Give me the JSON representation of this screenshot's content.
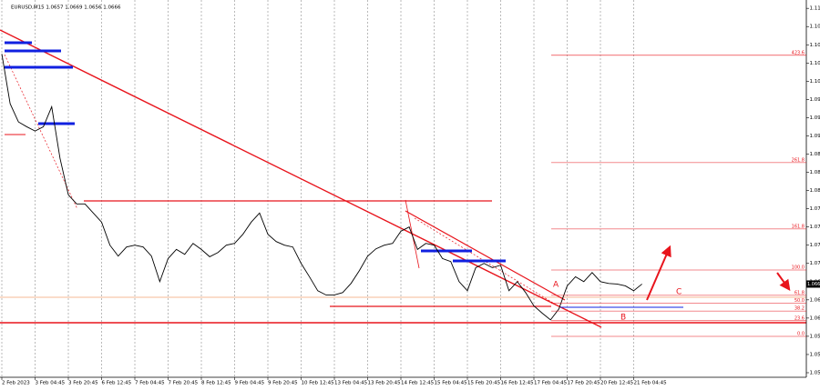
{
  "chart_data": {
    "type": "line",
    "title": "EURUSD,M15  1.0657 1.0669 1.0656 1.0666",
    "categories": [
      "2 Feb 2023",
      null,
      null,
      null,
      "3 Feb 04:45",
      null,
      null,
      null,
      "3 Feb 20:45",
      null,
      null,
      null,
      "6 Feb 12:45",
      null,
      null,
      null,
      "7 Feb 04:45",
      null,
      null,
      null,
      "7 Feb 20:45",
      null,
      null,
      null,
      "8 Feb 12:45",
      null,
      null,
      null,
      "9 Feb 04:45",
      null,
      null,
      null,
      "9 Feb 20:45",
      null,
      null,
      null,
      "10 Feb 12:45",
      null,
      null,
      null,
      "13 Feb 04:45",
      null,
      null,
      null,
      "13 Feb 20:45",
      null,
      null,
      null,
      "14 Feb 12:45",
      null,
      null,
      null,
      "15 Feb 04:45",
      null,
      null,
      null,
      "15 Feb 20:45",
      null,
      null,
      null,
      "16 Feb 12:45",
      null,
      null,
      null,
      "17 Feb 04:45",
      null,
      null,
      null,
      "17 Feb 20:45",
      null,
      null,
      null,
      "20 Feb 12:45",
      null,
      null,
      null,
      "21 Feb 04:45",
      null,
      null,
      null,
      null,
      null,
      null,
      null,
      null,
      null,
      null,
      null,
      null,
      null,
      null,
      null,
      null,
      null,
      null,
      null,
      null
    ],
    "series": [
      {
        "name": "EURUSD",
        "color": "#000000",
        "values": [
          1.1045,
          1.0963,
          1.0933,
          1.0925,
          1.0918,
          1.0925,
          1.0958,
          1.0873,
          1.0813,
          1.0798,
          1.0798,
          1.0783,
          1.0768,
          1.073,
          1.0712,
          1.0727,
          1.073,
          1.0727,
          1.0712,
          1.067,
          1.0708,
          1.0723,
          1.0715,
          1.0733,
          1.0723,
          1.0711,
          1.0718,
          1.073,
          1.0733,
          1.0748,
          1.0768,
          1.0783,
          1.0748,
          1.0736,
          1.073,
          1.0727,
          1.07,
          1.0678,
          1.0655,
          1.0648,
          1.0648,
          1.0652,
          1.0667,
          1.0688,
          1.0712,
          1.0724,
          1.073,
          1.0733,
          1.0753,
          1.076,
          1.0723,
          1.0733,
          1.073,
          1.0708,
          1.0703,
          1.067,
          1.0655,
          1.0693,
          1.07,
          1.0693,
          1.0697,
          1.0655,
          1.067,
          1.0652,
          1.063,
          1.0618,
          1.0607,
          1.0625,
          1.0663,
          1.0678,
          1.067,
          1.0685,
          1.067,
          1.0667,
          1.0666,
          1.0663,
          1.0655,
          1.0666,
          null,
          null,
          null,
          null,
          null,
          null,
          null,
          null,
          null,
          null,
          null,
          null,
          null,
          null,
          null,
          null,
          null,
          null,
          null
        ]
      }
    ],
    "ylim": [
      1.05125,
      1.113
    ],
    "yticks": [
      1.052,
      1.055,
      1.058,
      1.061,
      1.064,
      1.067,
      {
        "value": 1.07,
        "label": "1.070"
      },
      1.073,
      1.076,
      1.079,
      1.082,
      1.085,
      1.088,
      1.091,
      1.094,
      1.097,
      {
        "value": 1.1,
        "label": "1.100"
      },
      1.103,
      1.106,
      1.109,
      1.112
    ],
    "grid": true,
    "last_price": 1.0666,
    "fib_levels": [
      {
        "value": 423.6,
        "label": "423.6"
      },
      {
        "value": 261.8,
        "label": "261.8"
      },
      {
        "value": 161.8,
        "label": "161.8"
      },
      {
        "value": 100,
        "label": "100.0"
      },
      {
        "value": 61.8,
        "label": "61.8"
      },
      {
        "value": 50,
        "label": "50.0"
      },
      {
        "value": 38.2,
        "label": "38.2"
      },
      {
        "value": 23.6,
        "label": "23.6"
      },
      {
        "value": 0,
        "label": "0.0"
      }
    ],
    "wave_labels": [
      "A",
      "B",
      "C"
    ]
  }
}
